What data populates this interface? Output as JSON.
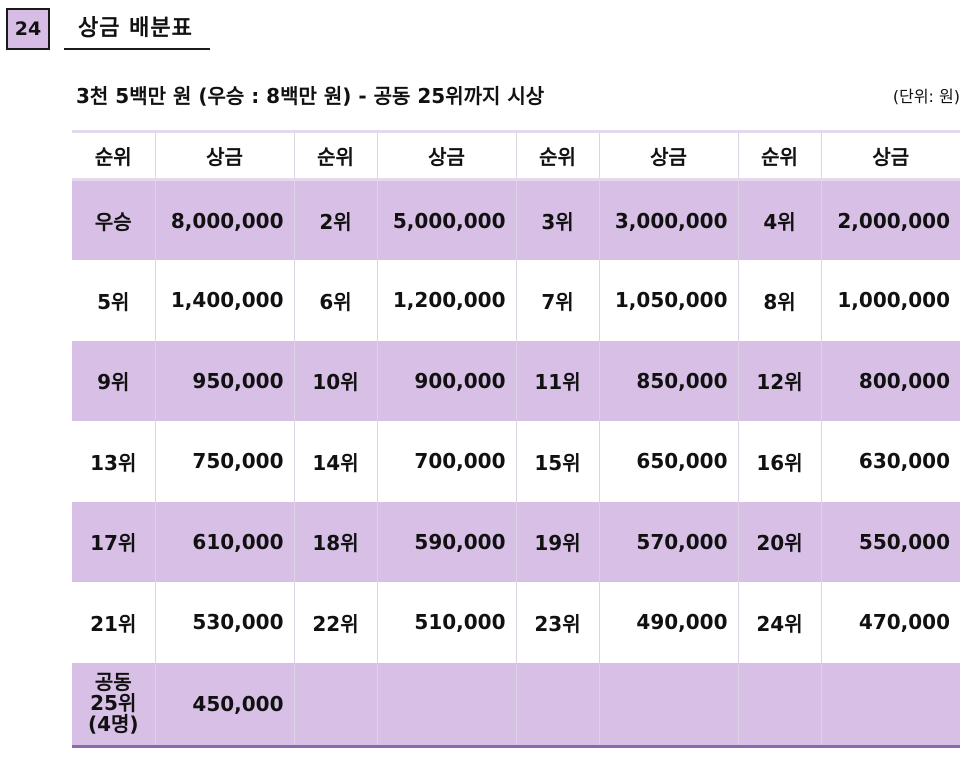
{
  "page": {
    "number": "24",
    "title": "상금 배분표"
  },
  "subtitle": "3천 5백만 원 (우승 : 8백만 원) - 공동 25위까지 시상",
  "unit": "(단위: 원)",
  "table": {
    "headers": [
      "순위",
      "상금",
      "순위",
      "상금",
      "순위",
      "상금",
      "순위",
      "상금"
    ],
    "rows": [
      [
        [
          "우승",
          "8,000,000"
        ],
        [
          "2위",
          "5,000,000"
        ],
        [
          "3위",
          "3,000,000"
        ],
        [
          "4위",
          "2,000,000"
        ]
      ],
      [
        [
          "5위",
          "1,400,000"
        ],
        [
          "6위",
          "1,200,000"
        ],
        [
          "7위",
          "1,050,000"
        ],
        [
          "8위",
          "1,000,000"
        ]
      ],
      [
        [
          "9위",
          "950,000"
        ],
        [
          "10위",
          "900,000"
        ],
        [
          "11위",
          "850,000"
        ],
        [
          "12위",
          "800,000"
        ]
      ],
      [
        [
          "13위",
          "750,000"
        ],
        [
          "14위",
          "700,000"
        ],
        [
          "15위",
          "650,000"
        ],
        [
          "16위",
          "630,000"
        ]
      ],
      [
        [
          "17위",
          "610,000"
        ],
        [
          "18위",
          "590,000"
        ],
        [
          "19위",
          "570,000"
        ],
        [
          "20위",
          "550,000"
        ]
      ],
      [
        [
          "21위",
          "530,000"
        ],
        [
          "22위",
          "510,000"
        ],
        [
          "23위",
          "490,000"
        ],
        [
          "24위",
          "470,000"
        ]
      ]
    ],
    "last_row": {
      "rank_lines": [
        "공동",
        "25위",
        "(4명)"
      ],
      "amount": "450,000"
    }
  },
  "colors": {
    "shade": "#d8bfe6",
    "badge": "#d7bde6",
    "rule": "#8a6aa8"
  }
}
